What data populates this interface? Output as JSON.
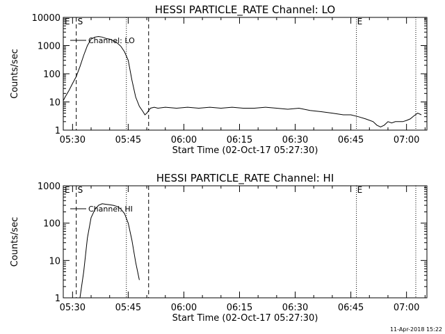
{
  "chart_data": [
    {
      "type": "line",
      "title": "HESSI PARTICLE_RATE Channel: LO",
      "xlabel": "Start Time (02-Oct-17 05:27:30)",
      "ylabel": "Counts/sec",
      "y_scale": "log",
      "ylim": [
        1,
        10000
      ],
      "y_ticks": [
        "1",
        "10",
        "100",
        "1000",
        "10000"
      ],
      "xlim": [
        "05:27:30",
        "07:05:30"
      ],
      "x_ticks": [
        "05:30",
        "05:45",
        "06:00",
        "06:15",
        "06:30",
        "06:45",
        "07:00"
      ],
      "legend": "Channel: LO",
      "markers": {
        "start_label": "S",
        "end_label": "E",
        "corner_label": "E"
      },
      "series": [
        {
          "x": [
            "05:27:30",
            "05:28:00",
            "05:29:00",
            "05:30:00",
            "05:31:00",
            "05:32:00",
            "05:33:00",
            "05:34:00",
            "05:35:00",
            "05:36:00",
            "05:37:00",
            "05:38:00",
            "05:39:00",
            "05:40:00",
            "05:41:00",
            "05:42:00",
            "05:43:00",
            "05:44:00",
            "05:45:00",
            "05:46:00",
            "05:47:00",
            "05:48:00",
            "05:49:00",
            "05:49:30",
            "05:50:00",
            "05:51:00",
            "05:52:00",
            "05:53:00",
            "05:55:00",
            "05:58:00",
            "06:01:00",
            "06:04:00",
            "06:07:00",
            "06:10:00",
            "06:13:00",
            "06:16:00",
            "06:19:00",
            "06:22:00",
            "06:25:00",
            "06:28:00",
            "06:31:00",
            "06:34:00",
            "06:37:00",
            "06:40:00",
            "06:43:00",
            "06:45:00",
            "06:47:00",
            "06:49:00",
            "06:51:00",
            "06:52:00",
            "06:53:00",
            "06:54:00",
            "06:55:00",
            "06:56:00",
            "06:57:00",
            "06:58:00",
            "06:59:00",
            "07:00:00",
            "07:01:00",
            "07:02:00",
            "07:03:00",
            "07:04:00"
          ],
          "values": [
            11,
            15,
            25,
            45,
            80,
            180,
            450,
            1000,
            1700,
            2000,
            2100,
            2000,
            1800,
            1700,
            1500,
            1250,
            950,
            600,
            300,
            60,
            15,
            7,
            4.5,
            3.5,
            4,
            6,
            6.5,
            6,
            6.5,
            6,
            6.5,
            6,
            6.5,
            6,
            6.5,
            6,
            6,
            6.5,
            6,
            5.5,
            6,
            5,
            4.5,
            4,
            3.5,
            3.5,
            3,
            2.5,
            2,
            1.5,
            1.3,
            1.5,
            2,
            1.8,
            2,
            2,
            2,
            2.2,
            2.5,
            3.2,
            4,
            3.5
          ]
        }
      ]
    },
    {
      "type": "line",
      "title": "HESSI PARTICLE_RATE Channel: HI",
      "xlabel": "Start Time (02-Oct-17 05:27:30)",
      "ylabel": "Counts/sec",
      "y_scale": "log",
      "ylim": [
        1,
        1000
      ],
      "y_ticks": [
        "1",
        "10",
        "100",
        "1000"
      ],
      "xlim": [
        "05:27:30",
        "07:05:30"
      ],
      "x_ticks": [
        "05:30",
        "05:45",
        "06:00",
        "06:15",
        "06:30",
        "06:45",
        "07:00"
      ],
      "legend": "Channel: HI",
      "markers": {
        "start_label": "S",
        "end_label": "E",
        "corner_label": "E"
      },
      "series": [
        {
          "x": [
            "05:32:00",
            "05:33:00",
            "05:34:00",
            "05:35:00",
            "05:36:00",
            "05:37:00",
            "05:38:00",
            "05:39:00",
            "05:40:00",
            "05:41:00",
            "05:42:00",
            "05:43:00",
            "05:44:00",
            "05:45:00",
            "05:46:00",
            "05:47:00",
            "05:48:00"
          ],
          "values": [
            1,
            5,
            40,
            140,
            230,
            300,
            330,
            320,
            310,
            300,
            280,
            240,
            180,
            100,
            35,
            9,
            3
          ]
        }
      ]
    }
  ],
  "vertical_lines": {
    "dashed": [
      "05:31:00",
      "05:50:30"
    ],
    "dotted": [
      "05:44:30",
      "06:46:30",
      "07:02:30"
    ]
  },
  "footer": {
    "timestamp": "11-Apr-2018 15:22"
  }
}
